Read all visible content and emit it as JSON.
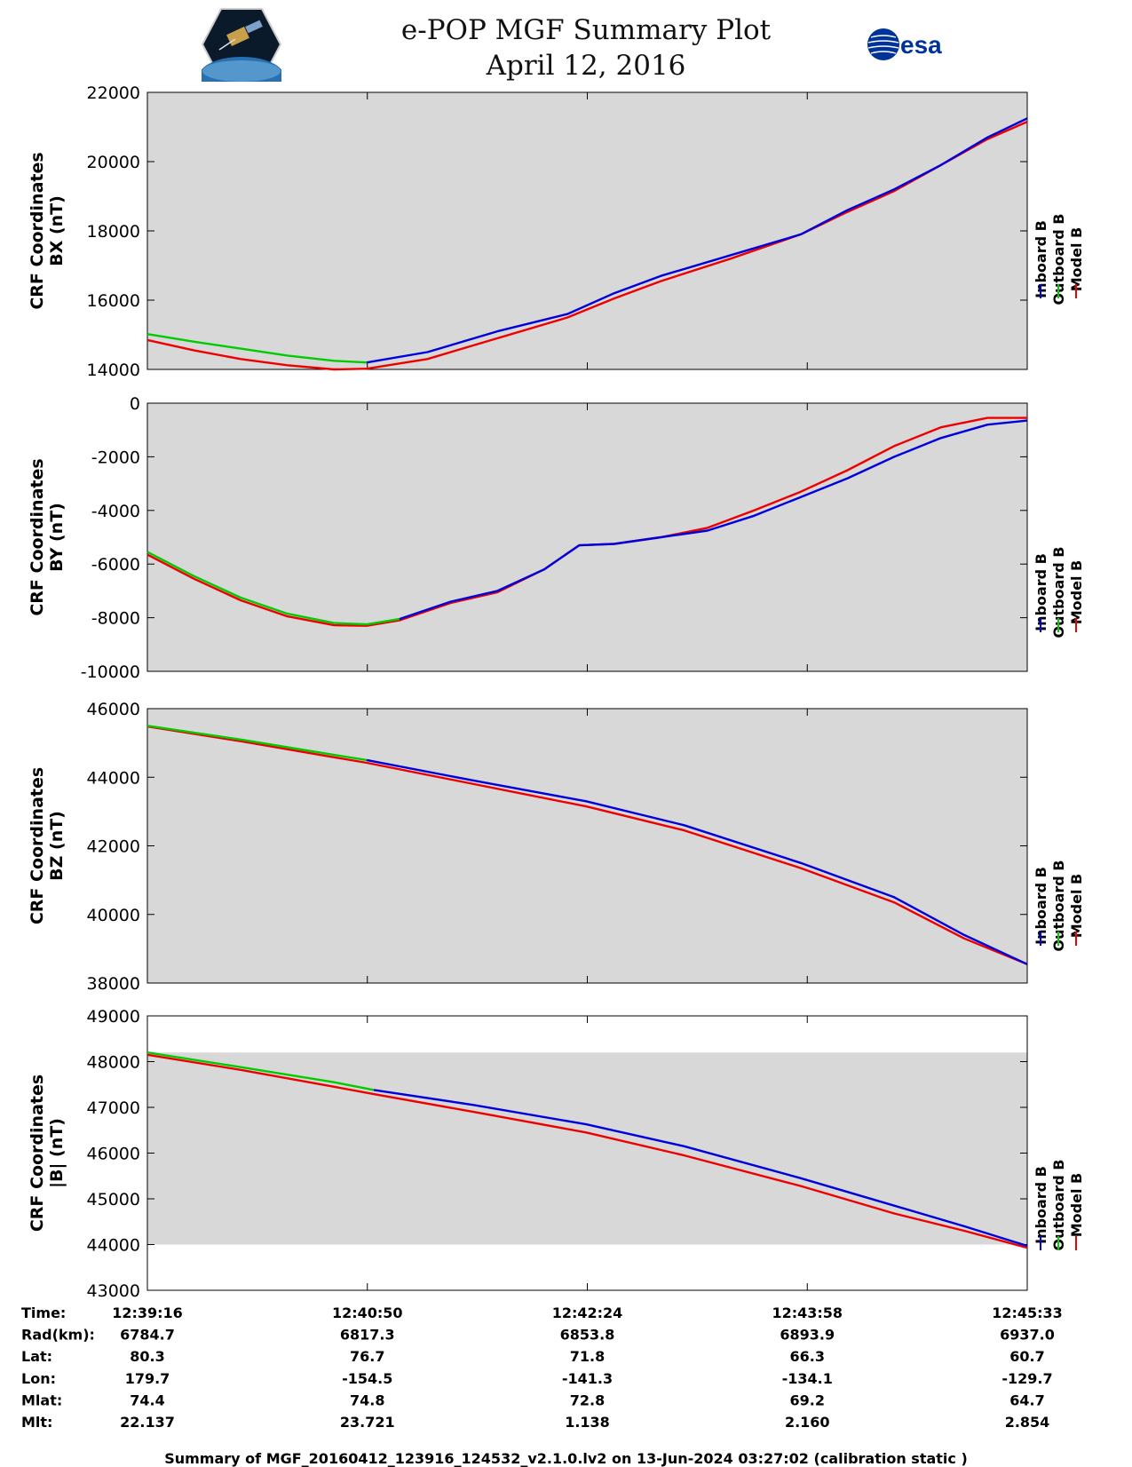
{
  "header": {
    "title_line1": "e-POP MGF Summary Plot",
    "title_line2": "April 12, 2016",
    "left_logo": "cassiope-mission-logo",
    "right_logo": "esa",
    "right_logo_text": "esa"
  },
  "colors": {
    "inboard": "#0000dd",
    "outboard": "#00cc00",
    "model": "#ee0000",
    "panel_bg": "#d8d8d8"
  },
  "chart_data": [
    {
      "type": "line",
      "ylabel_line1": "CRF Coordinates",
      "ylabel_line2": "BX (nT)",
      "ylim": [
        14000,
        22000
      ],
      "yticks": [
        14000,
        16000,
        18000,
        20000,
        22000
      ],
      "xlim": [
        0,
        377
      ],
      "shade": [
        14000,
        22000
      ],
      "legend": [
        "Inboard B",
        "Outboard B",
        "Model B"
      ],
      "series": [
        {
          "name": "Outboard B",
          "color": "#00cc00",
          "x": [
            0,
            20,
            40,
            60,
            80,
            94
          ],
          "values": [
            15020,
            14800,
            14600,
            14400,
            14250,
            14200
          ]
        },
        {
          "name": "Inboard B",
          "color": "#0000dd",
          "x": [
            94,
            120,
            150,
            180,
            200,
            220,
            250,
            280,
            300,
            320,
            340,
            360,
            377
          ],
          "values": [
            14200,
            14500,
            15100,
            15600,
            16200,
            16700,
            17300,
            17900,
            18600,
            19200,
            19900,
            20700,
            21250
          ]
        },
        {
          "name": "Model B",
          "color": "#ee0000",
          "x": [
            0,
            20,
            40,
            60,
            80,
            94,
            120,
            150,
            180,
            200,
            220,
            250,
            280,
            300,
            320,
            340,
            360,
            377
          ],
          "values": [
            14850,
            14550,
            14300,
            14120,
            14000,
            14020,
            14300,
            14900,
            15500,
            16050,
            16550,
            17200,
            17900,
            18550,
            19150,
            19900,
            20650,
            21150
          ]
        }
      ]
    },
    {
      "type": "line",
      "ylabel_line1": "CRF Coordinates",
      "ylabel_line2": "BY (nT)",
      "ylim": [
        -10000,
        0
      ],
      "yticks": [
        -10000,
        -8000,
        -6000,
        -4000,
        -2000,
        0
      ],
      "xlim": [
        0,
        377
      ],
      "shade": [
        -10000,
        0
      ],
      "legend": [
        "Inboard B",
        "Outboard B",
        "Model B"
      ],
      "series": [
        {
          "name": "Outboard B",
          "color": "#00cc00",
          "x": [
            0,
            20,
            40,
            60,
            80,
            94,
            108
          ],
          "values": [
            -5550,
            -6450,
            -7250,
            -7850,
            -8200,
            -8250,
            -8050
          ]
        },
        {
          "name": "Inboard B",
          "color": "#0000dd",
          "x": [
            108,
            130,
            150,
            170,
            185,
            200,
            220,
            240,
            260,
            280,
            300,
            320,
            340,
            360,
            377
          ],
          "values": [
            -8050,
            -7400,
            -7000,
            -6200,
            -5300,
            -5250,
            -5000,
            -4750,
            -4200,
            -3500,
            -2800,
            -2000,
            -1300,
            -800,
            -650
          ]
        },
        {
          "name": "Model B",
          "color": "#ee0000",
          "x": [
            0,
            20,
            40,
            60,
            80,
            94,
            108,
            130,
            150,
            170,
            185,
            200,
            220,
            240,
            260,
            280,
            300,
            320,
            340,
            360,
            377
          ],
          "values": [
            -5650,
            -6550,
            -7350,
            -7950,
            -8280,
            -8300,
            -8100,
            -7450,
            -7050,
            -6200,
            -5300,
            -5250,
            -5000,
            -4650,
            -4000,
            -3300,
            -2500,
            -1600,
            -900,
            -550,
            -550
          ]
        }
      ]
    },
    {
      "type": "line",
      "ylabel_line1": "CRF Coordinates",
      "ylabel_line2": "BZ (nT)",
      "ylim": [
        38000,
        46000
      ],
      "yticks": [
        38000,
        40000,
        42000,
        44000,
        46000
      ],
      "xlim": [
        0,
        377
      ],
      "shade": [
        38000,
        46000
      ],
      "legend": [
        "Inboard B",
        "Outboard B",
        "Model B"
      ],
      "series": [
        {
          "name": "Outboard B",
          "color": "#00cc00",
          "x": [
            0,
            40,
            80,
            94
          ],
          "values": [
            45500,
            45100,
            44650,
            44500
          ]
        },
        {
          "name": "Inboard B",
          "color": "#0000dd",
          "x": [
            94,
            140,
            188,
            230,
            280,
            320,
            350,
            377
          ],
          "values": [
            44500,
            43900,
            43300,
            42600,
            41500,
            40500,
            39400,
            38550
          ]
        },
        {
          "name": "Model B",
          "color": "#ee0000",
          "x": [
            0,
            40,
            80,
            94,
            140,
            188,
            230,
            280,
            320,
            350,
            377
          ],
          "values": [
            45480,
            45050,
            44580,
            44420,
            43800,
            43150,
            42450,
            41350,
            40350,
            39300,
            38550
          ]
        }
      ]
    },
    {
      "type": "line",
      "ylabel_line1": "CRF Coordinates",
      "ylabel_line2": "|B| (nT)",
      "ylim": [
        43000,
        49000
      ],
      "yticks": [
        43000,
        44000,
        45000,
        46000,
        47000,
        48000,
        49000
      ],
      "xlim": [
        0,
        377
      ],
      "shade": [
        44000,
        48200
      ],
      "legend": [
        "Inboard B",
        "Outboard B",
        "Model B"
      ],
      "series": [
        {
          "name": "Outboard B",
          "color": "#00cc00",
          "x": [
            0,
            40,
            80,
            97
          ],
          "values": [
            48200,
            47880,
            47550,
            47380
          ]
        },
        {
          "name": "Inboard B",
          "color": "#0000dd",
          "x": [
            97,
            140,
            188,
            230,
            280,
            320,
            350,
            377
          ],
          "values": [
            47380,
            47050,
            46630,
            46150,
            45450,
            44850,
            44400,
            43970
          ]
        },
        {
          "name": "Model B",
          "color": "#ee0000",
          "x": [
            0,
            40,
            80,
            97,
            140,
            188,
            230,
            280,
            320,
            350,
            377
          ],
          "values": [
            48150,
            47820,
            47450,
            47290,
            46900,
            46450,
            45950,
            45280,
            44680,
            44300,
            43930
          ]
        }
      ]
    }
  ],
  "info_table": {
    "rows": [
      {
        "label": "Time:",
        "values": [
          "12:39:16",
          "12:40:50",
          "12:42:24",
          "12:43:58",
          "12:45:33"
        ]
      },
      {
        "label": "Rad(km):",
        "values": [
          "6784.7",
          "6817.3",
          "6853.8",
          "6893.9",
          "6937.0"
        ]
      },
      {
        "label": "Lat:",
        "values": [
          "80.3",
          "76.7",
          "71.8",
          "66.3",
          "60.7"
        ]
      },
      {
        "label": "Lon:",
        "values": [
          "179.7",
          "-154.5",
          "-141.3",
          "-134.1",
          "-129.7"
        ]
      },
      {
        "label": "Mlat:",
        "values": [
          "74.4",
          "74.8",
          "72.8",
          "69.2",
          "64.7"
        ]
      },
      {
        "label": "Mlt:",
        "values": [
          "22.137",
          "23.721",
          "1.138",
          "2.160",
          "2.854"
        ]
      }
    ]
  },
  "footer": "Summary of MGF_20160412_123916_124532_v2.1.0.lv2 on 13-Jun-2024 03:27:02 (calibration static )"
}
